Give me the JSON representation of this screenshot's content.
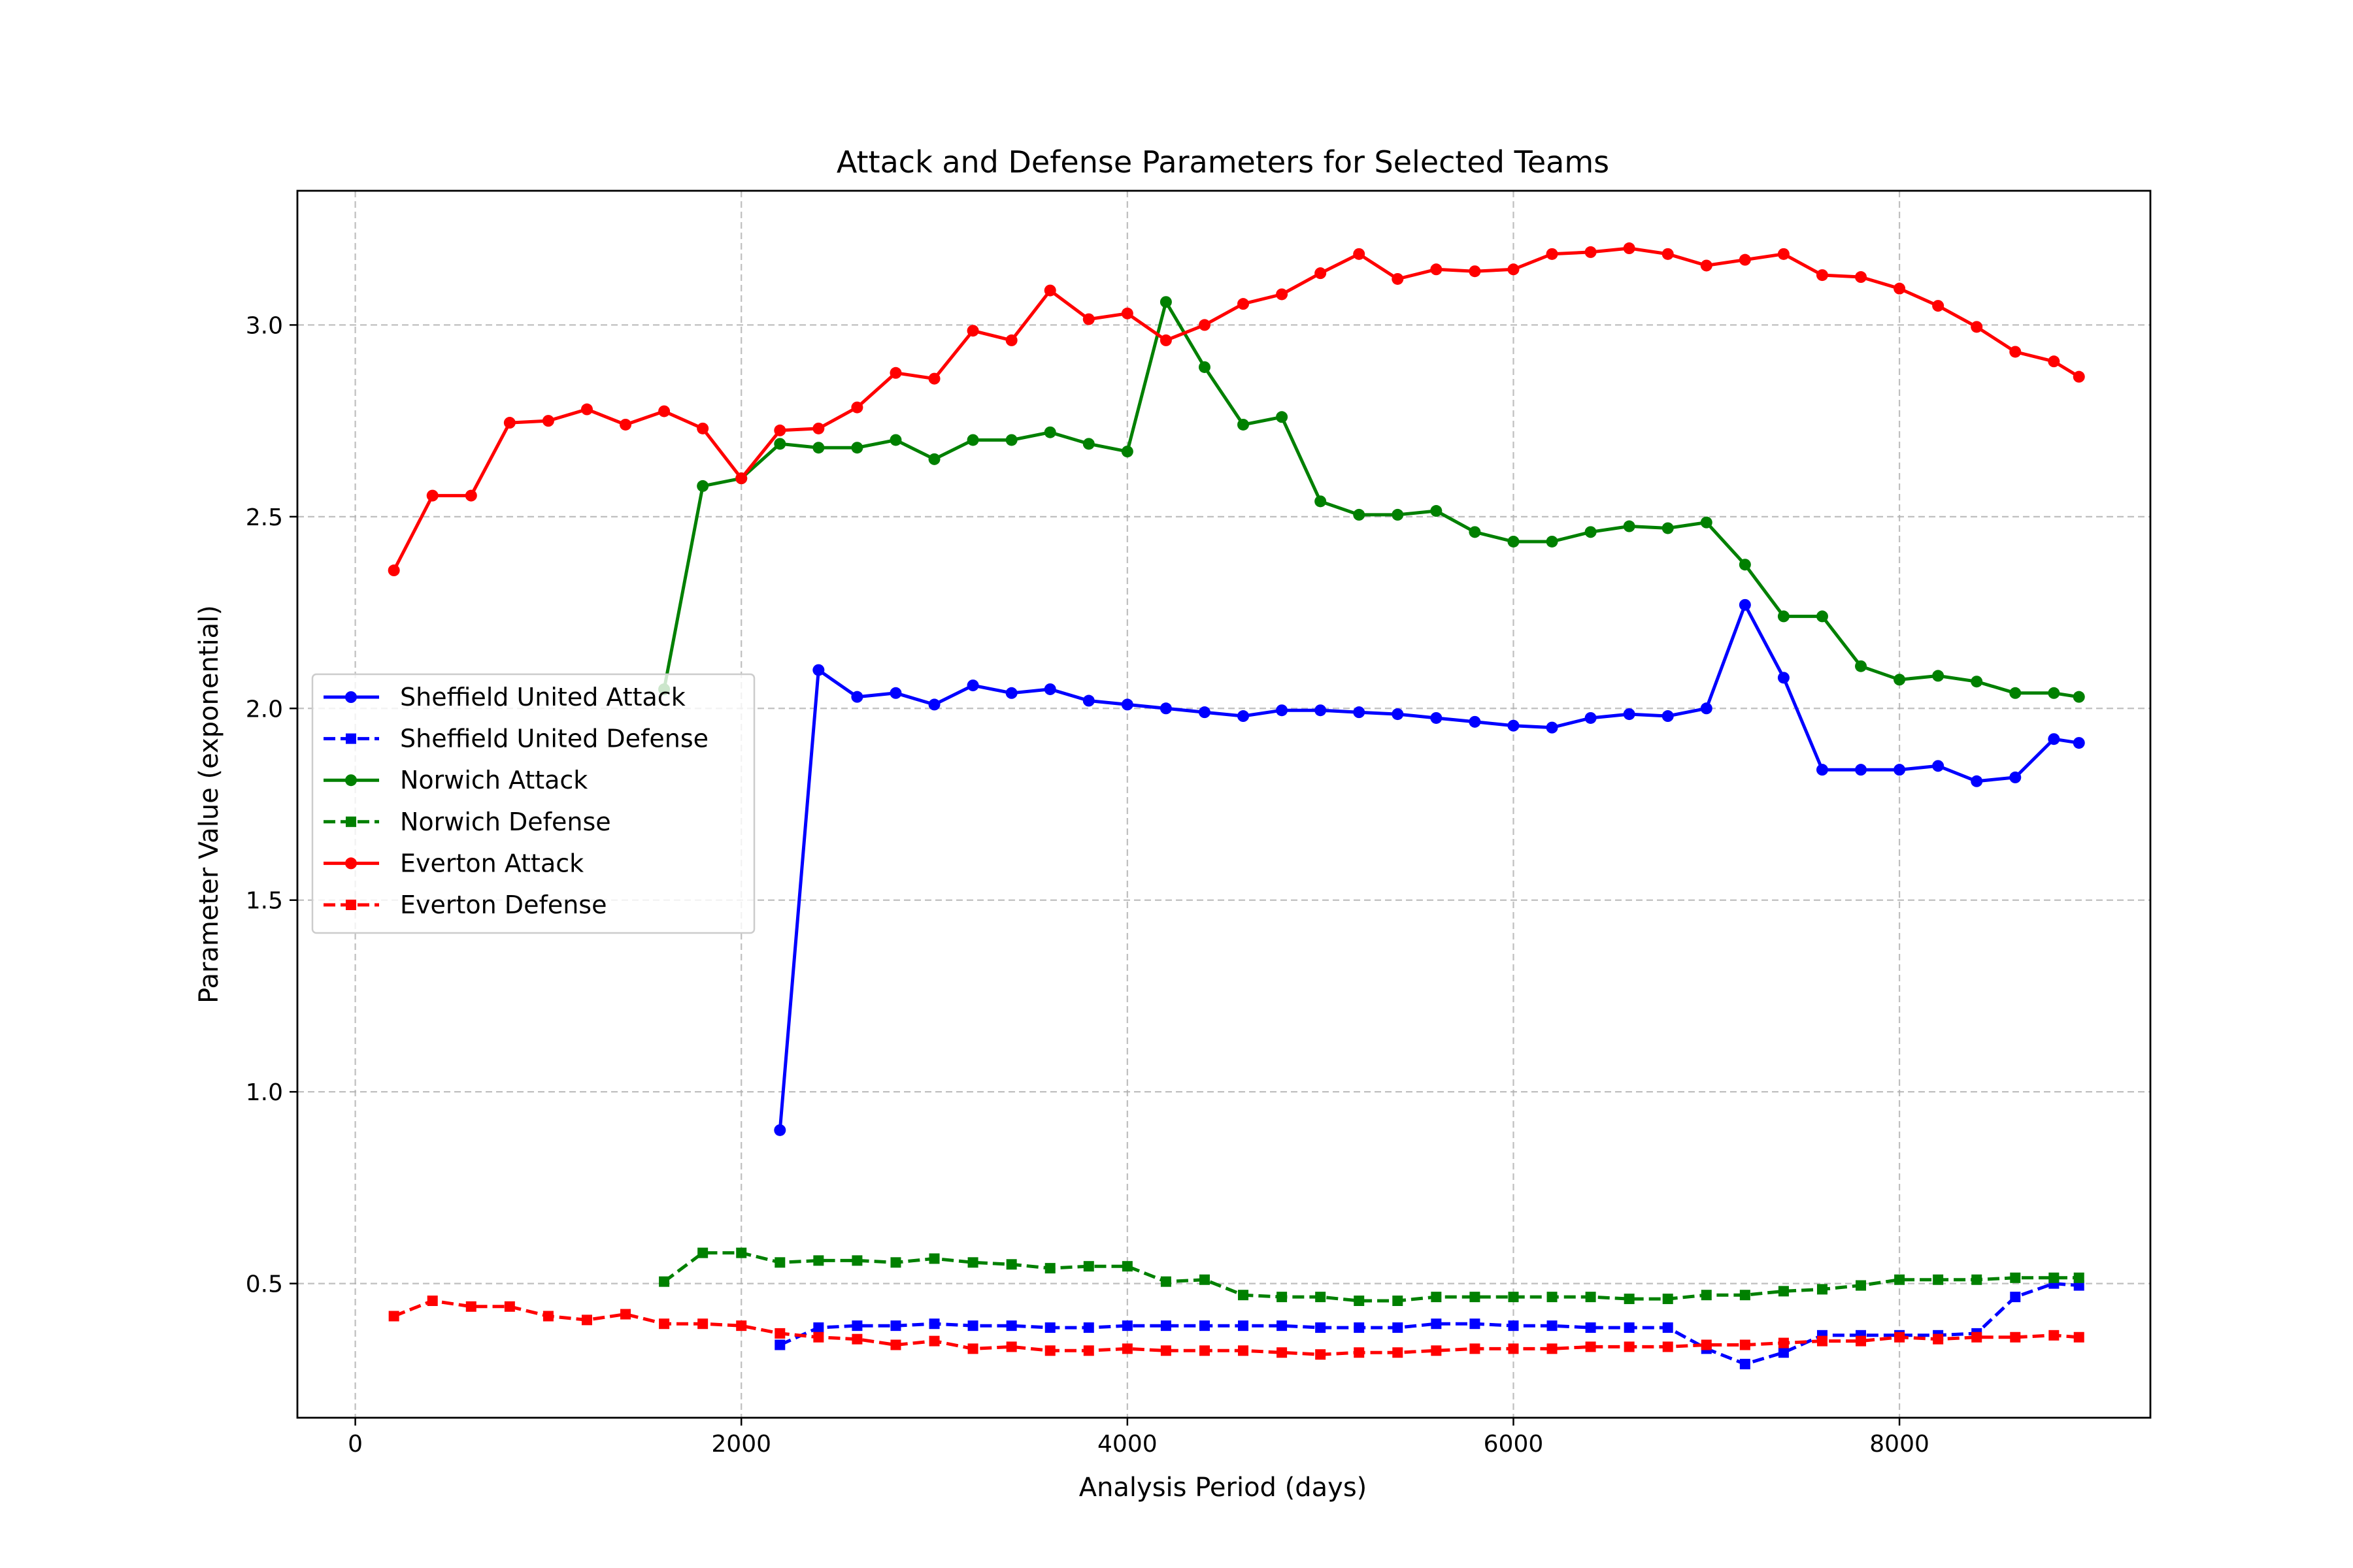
{
  "chart_data": {
    "type": "line",
    "title": "Attack and Defense Parameters for Selected Teams",
    "xlabel": "Analysis Period (days)",
    "ylabel": "Parameter Value (exponential)",
    "xlim": [
      -300,
      9300
    ],
    "ylim": [
      0.15,
      3.35
    ],
    "xticks": [
      0,
      2000,
      4000,
      6000,
      8000
    ],
    "xtick_labels": [
      "0",
      "2000",
      "4000",
      "6000",
      "8000"
    ],
    "yticks": [
      0.5,
      1.0,
      1.5,
      2.0,
      2.5,
      3.0
    ],
    "ytick_labels": [
      "0.5",
      "1.0",
      "1.5",
      "2.0",
      "2.5",
      "3.0"
    ],
    "grid": true,
    "legend_position": "center-left",
    "series": [
      {
        "name": "Sheffield United Attack",
        "color": "#0000ff",
        "linestyle": "solid",
        "marker": "circle",
        "points": [
          [
            2200,
            0.9
          ],
          [
            2400,
            2.1
          ],
          [
            2600,
            2.03
          ],
          [
            2800,
            2.04
          ],
          [
            3000,
            2.01
          ],
          [
            3200,
            2.06
          ],
          [
            3400,
            2.04
          ],
          [
            3600,
            2.05
          ],
          [
            3800,
            2.02
          ],
          [
            4000,
            2.01
          ],
          [
            4200,
            2.0
          ],
          [
            4400,
            1.99
          ],
          [
            4600,
            1.98
          ],
          [
            4800,
            1.995
          ],
          [
            5000,
            1.995
          ],
          [
            5200,
            1.99
          ],
          [
            5400,
            1.985
          ],
          [
            5600,
            1.975
          ],
          [
            5800,
            1.965
          ],
          [
            6000,
            1.955
          ],
          [
            6200,
            1.95
          ],
          [
            6400,
            1.975
          ],
          [
            6600,
            1.985
          ],
          [
            6800,
            1.98
          ],
          [
            7000,
            2.0
          ],
          [
            7200,
            2.27
          ],
          [
            7400,
            2.08
          ],
          [
            7600,
            1.84
          ],
          [
            7800,
            1.84
          ],
          [
            8000,
            1.84
          ],
          [
            8200,
            1.85
          ],
          [
            8400,
            1.81
          ],
          [
            8600,
            1.82
          ],
          [
            8800,
            1.92
          ],
          [
            8930,
            1.91
          ]
        ]
      },
      {
        "name": "Sheffield United Defense",
        "color": "#0000ff",
        "linestyle": "dashed",
        "marker": "square",
        "points": [
          [
            2200,
            0.34
          ],
          [
            2400,
            0.385
          ],
          [
            2600,
            0.39
          ],
          [
            2800,
            0.39
          ],
          [
            3000,
            0.395
          ],
          [
            3200,
            0.39
          ],
          [
            3400,
            0.39
          ],
          [
            3600,
            0.385
          ],
          [
            3800,
            0.385
          ],
          [
            4000,
            0.39
          ],
          [
            4200,
            0.39
          ],
          [
            4400,
            0.39
          ],
          [
            4600,
            0.39
          ],
          [
            4800,
            0.39
          ],
          [
            5000,
            0.385
          ],
          [
            5200,
            0.385
          ],
          [
            5400,
            0.385
          ],
          [
            5600,
            0.395
          ],
          [
            5800,
            0.395
          ],
          [
            6000,
            0.39
          ],
          [
            6200,
            0.39
          ],
          [
            6400,
            0.385
          ],
          [
            6600,
            0.385
          ],
          [
            6800,
            0.385
          ],
          [
            7000,
            0.33
          ],
          [
            7200,
            0.29
          ],
          [
            7400,
            0.32
          ],
          [
            7600,
            0.365
          ],
          [
            7800,
            0.365
          ],
          [
            8000,
            0.365
          ],
          [
            8200,
            0.365
          ],
          [
            8400,
            0.37
          ],
          [
            8600,
            0.465
          ],
          [
            8800,
            0.5
          ],
          [
            8930,
            0.495
          ]
        ]
      },
      {
        "name": "Norwich Attack",
        "color": "#008000",
        "linestyle": "solid",
        "marker": "circle",
        "points": [
          [
            1600,
            2.05
          ],
          [
            1800,
            2.58
          ],
          [
            2000,
            2.6
          ],
          [
            2200,
            2.69
          ],
          [
            2400,
            2.68
          ],
          [
            2600,
            2.68
          ],
          [
            2800,
            2.7
          ],
          [
            3000,
            2.65
          ],
          [
            3200,
            2.7
          ],
          [
            3400,
            2.7
          ],
          [
            3600,
            2.72
          ],
          [
            3800,
            2.69
          ],
          [
            4000,
            2.67
          ],
          [
            4200,
            3.06
          ],
          [
            4400,
            2.89
          ],
          [
            4600,
            2.74
          ],
          [
            4800,
            2.76
          ],
          [
            5000,
            2.54
          ],
          [
            5200,
            2.505
          ],
          [
            5400,
            2.505
          ],
          [
            5600,
            2.515
          ],
          [
            5800,
            2.46
          ],
          [
            6000,
            2.435
          ],
          [
            6200,
            2.435
          ],
          [
            6400,
            2.46
          ],
          [
            6600,
            2.475
          ],
          [
            6800,
            2.47
          ],
          [
            7000,
            2.485
          ],
          [
            7200,
            2.375
          ],
          [
            7400,
            2.24
          ],
          [
            7600,
            2.24
          ],
          [
            7800,
            2.11
          ],
          [
            8000,
            2.075
          ],
          [
            8200,
            2.085
          ],
          [
            8400,
            2.07
          ],
          [
            8600,
            2.04
          ],
          [
            8800,
            2.04
          ],
          [
            8930,
            2.03
          ]
        ]
      },
      {
        "name": "Norwich Defense",
        "color": "#008000",
        "linestyle": "dashed",
        "marker": "square",
        "points": [
          [
            1600,
            0.505
          ],
          [
            1800,
            0.58
          ],
          [
            2000,
            0.58
          ],
          [
            2200,
            0.555
          ],
          [
            2400,
            0.56
          ],
          [
            2600,
            0.56
          ],
          [
            2800,
            0.555
          ],
          [
            3000,
            0.565
          ],
          [
            3200,
            0.555
          ],
          [
            3400,
            0.55
          ],
          [
            3600,
            0.54
          ],
          [
            3800,
            0.545
          ],
          [
            4000,
            0.545
          ],
          [
            4200,
            0.505
          ],
          [
            4400,
            0.51
          ],
          [
            4600,
            0.47
          ],
          [
            4800,
            0.465
          ],
          [
            5000,
            0.465
          ],
          [
            5200,
            0.455
          ],
          [
            5400,
            0.455
          ],
          [
            5600,
            0.465
          ],
          [
            5800,
            0.465
          ],
          [
            6000,
            0.465
          ],
          [
            6200,
            0.465
          ],
          [
            6400,
            0.465
          ],
          [
            6600,
            0.46
          ],
          [
            6800,
            0.46
          ],
          [
            7000,
            0.47
          ],
          [
            7200,
            0.47
          ],
          [
            7400,
            0.48
          ],
          [
            7600,
            0.485
          ],
          [
            7800,
            0.495
          ],
          [
            8000,
            0.51
          ],
          [
            8200,
            0.51
          ],
          [
            8400,
            0.51
          ],
          [
            8600,
            0.515
          ],
          [
            8800,
            0.515
          ],
          [
            8930,
            0.515
          ]
        ]
      },
      {
        "name": "Everton Attack",
        "color": "#ff0000",
        "linestyle": "solid",
        "marker": "circle",
        "points": [
          [
            200,
            2.36
          ],
          [
            400,
            2.555
          ],
          [
            600,
            2.555
          ],
          [
            800,
            2.745
          ],
          [
            1000,
            2.75
          ],
          [
            1200,
            2.78
          ],
          [
            1400,
            2.74
          ],
          [
            1600,
            2.775
          ],
          [
            1800,
            2.73
          ],
          [
            2000,
            2.6
          ],
          [
            2200,
            2.725
          ],
          [
            2400,
            2.73
          ],
          [
            2600,
            2.785
          ],
          [
            2800,
            2.875
          ],
          [
            3000,
            2.86
          ],
          [
            3200,
            2.985
          ],
          [
            3400,
            2.96
          ],
          [
            3600,
            3.09
          ],
          [
            3800,
            3.015
          ],
          [
            4000,
            3.03
          ],
          [
            4200,
            2.96
          ],
          [
            4400,
            3.0
          ],
          [
            4600,
            3.055
          ],
          [
            4800,
            3.08
          ],
          [
            5000,
            3.135
          ],
          [
            5200,
            3.185
          ],
          [
            5400,
            3.12
          ],
          [
            5600,
            3.145
          ],
          [
            5800,
            3.14
          ],
          [
            6000,
            3.145
          ],
          [
            6200,
            3.185
          ],
          [
            6400,
            3.19
          ],
          [
            6600,
            3.2
          ],
          [
            6800,
            3.185
          ],
          [
            7000,
            3.155
          ],
          [
            7200,
            3.17
          ],
          [
            7400,
            3.185
          ],
          [
            7600,
            3.13
          ],
          [
            7800,
            3.125
          ],
          [
            8000,
            3.095
          ],
          [
            8200,
            3.05
          ],
          [
            8400,
            2.995
          ],
          [
            8600,
            2.93
          ],
          [
            8800,
            2.905
          ],
          [
            8930,
            2.865
          ]
        ]
      },
      {
        "name": "Everton Defense",
        "color": "#ff0000",
        "linestyle": "dashed",
        "marker": "square",
        "points": [
          [
            200,
            0.415
          ],
          [
            400,
            0.455
          ],
          [
            600,
            0.44
          ],
          [
            800,
            0.44
          ],
          [
            1000,
            0.415
          ],
          [
            1200,
            0.405
          ],
          [
            1400,
            0.42
          ],
          [
            1600,
            0.395
          ],
          [
            1800,
            0.395
          ],
          [
            2000,
            0.39
          ],
          [
            2200,
            0.37
          ],
          [
            2400,
            0.36
          ],
          [
            2600,
            0.355
          ],
          [
            2800,
            0.34
          ],
          [
            3000,
            0.35
          ],
          [
            3200,
            0.33
          ],
          [
            3400,
            0.335
          ],
          [
            3600,
            0.325
          ],
          [
            3800,
            0.325
          ],
          [
            4000,
            0.33
          ],
          [
            4200,
            0.325
          ],
          [
            4400,
            0.325
          ],
          [
            4600,
            0.325
          ],
          [
            4800,
            0.32
          ],
          [
            5000,
            0.315
          ],
          [
            5200,
            0.32
          ],
          [
            5400,
            0.32
          ],
          [
            5600,
            0.325
          ],
          [
            5800,
            0.33
          ],
          [
            6000,
            0.33
          ],
          [
            6200,
            0.33
          ],
          [
            6400,
            0.335
          ],
          [
            6600,
            0.335
          ],
          [
            6800,
            0.335
          ],
          [
            7000,
            0.34
          ],
          [
            7200,
            0.34
          ],
          [
            7400,
            0.345
          ],
          [
            7600,
            0.35
          ],
          [
            7800,
            0.35
          ],
          [
            8000,
            0.36
          ],
          [
            8200,
            0.355
          ],
          [
            8400,
            0.36
          ],
          [
            8600,
            0.36
          ],
          [
            8800,
            0.365
          ],
          [
            8930,
            0.36
          ]
        ]
      }
    ]
  }
}
